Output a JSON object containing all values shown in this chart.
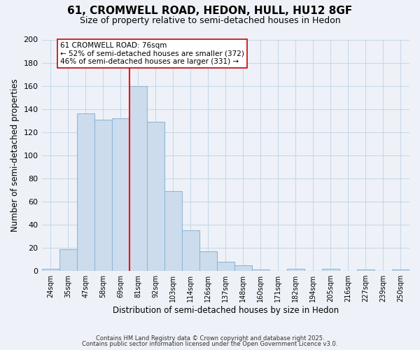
{
  "title": "61, CROMWELL ROAD, HEDON, HULL, HU12 8GF",
  "subtitle": "Size of property relative to semi-detached houses in Hedon",
  "xlabel": "Distribution of semi-detached houses by size in Hedon",
  "ylabel": "Number of semi-detached properties",
  "bin_labels": [
    "24sqm",
    "35sqm",
    "47sqm",
    "58sqm",
    "69sqm",
    "81sqm",
    "92sqm",
    "103sqm",
    "114sqm",
    "126sqm",
    "137sqm",
    "148sqm",
    "160sqm",
    "171sqm",
    "182sqm",
    "194sqm",
    "205sqm",
    "216sqm",
    "227sqm",
    "239sqm",
    "250sqm"
  ],
  "bar_heights": [
    2,
    19,
    136,
    131,
    132,
    160,
    129,
    69,
    35,
    17,
    8,
    5,
    1,
    0,
    2,
    0,
    2,
    0,
    1,
    0,
    1
  ],
  "bar_color": "#ccdcec",
  "bar_edge_color": "#90b8d8",
  "grid_color": "#c8d8e8",
  "vline_label": "61 CROMWELL ROAD: 76sqm",
  "annotation_line1": "← 52% of semi-detached houses are smaller (372)",
  "annotation_line2": "46% of semi-detached houses are larger (331) →",
  "ylim": [
    0,
    200
  ],
  "yticks": [
    0,
    20,
    40,
    60,
    80,
    100,
    120,
    140,
    160,
    180,
    200
  ],
  "footer_line1": "Contains HM Land Registry data © Crown copyright and database right 2025.",
  "footer_line2": "Contains public sector information licensed under the Open Government Licence v3.0.",
  "title_fontsize": 11,
  "subtitle_fontsize": 9,
  "bg_color": "#eef2f8"
}
